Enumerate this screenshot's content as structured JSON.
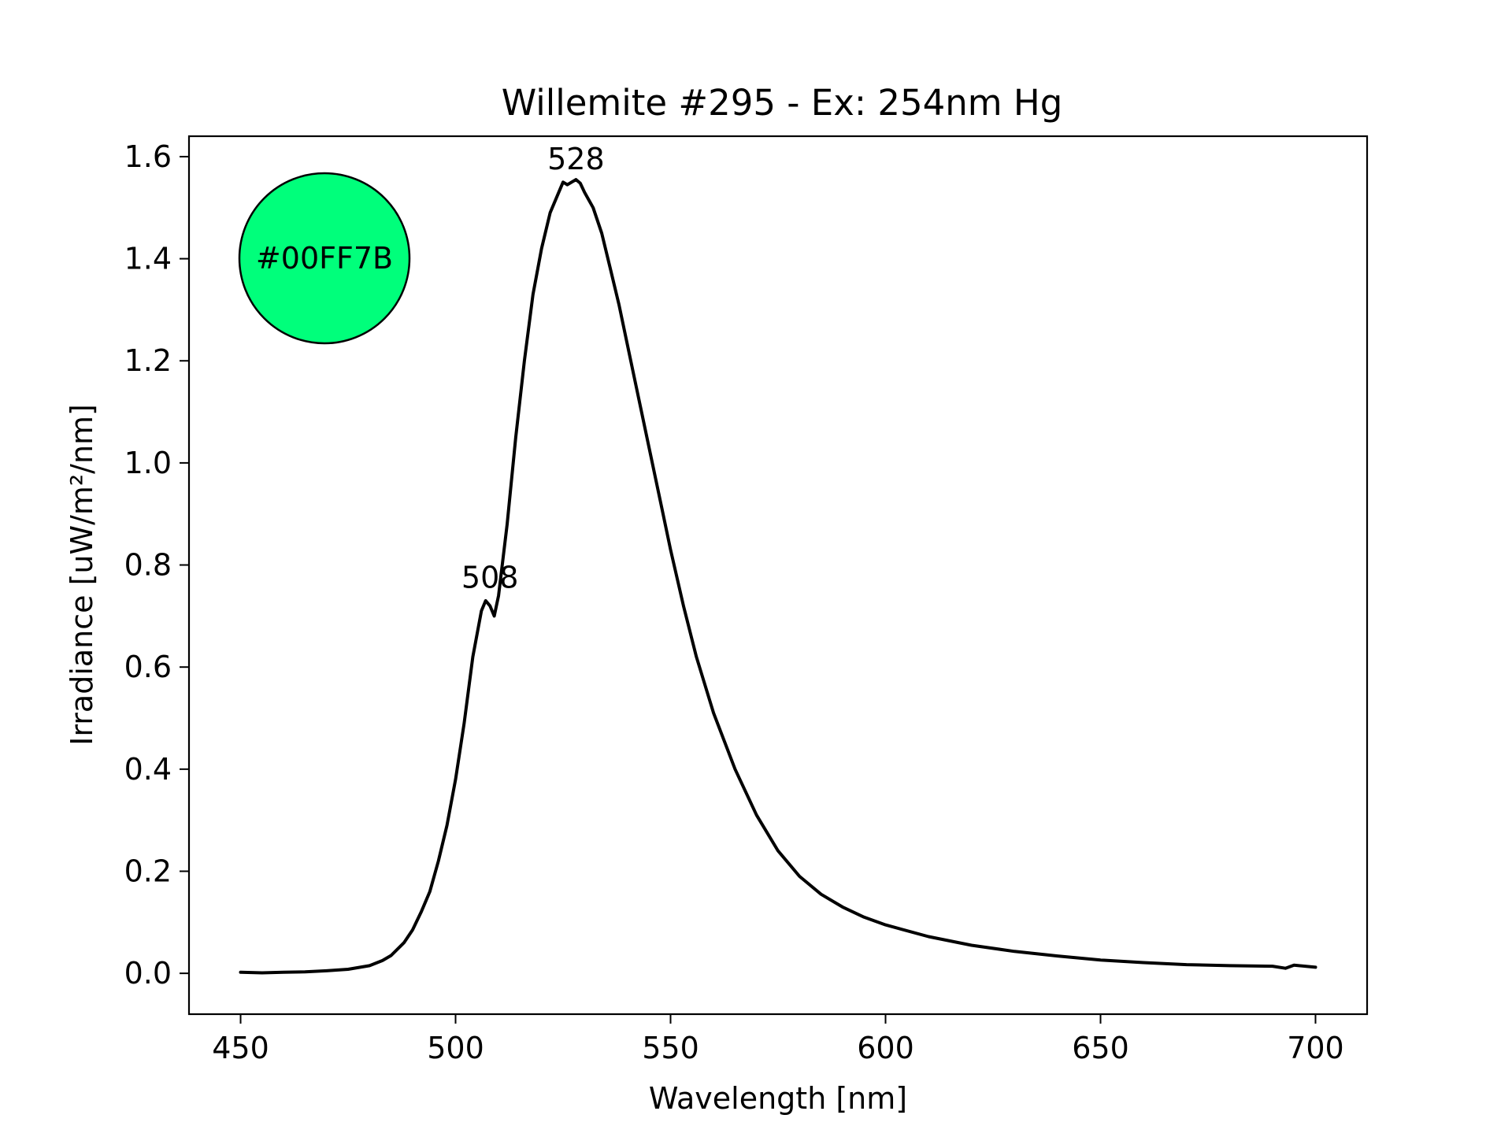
{
  "chart_data": {
    "type": "line",
    "title": "Willemite #295 - Ex: 254nm Hg",
    "xlabel": "Wavelength [nm]",
    "ylabel": "Irradiance [uW/m²/nm]",
    "xlim": [
      438,
      712
    ],
    "ylim": [
      -0.08,
      1.64
    ],
    "xticks": [
      {
        "value": 450,
        "label": "450"
      },
      {
        "value": 500,
        "label": "500"
      },
      {
        "value": 550,
        "label": "550"
      },
      {
        "value": 600,
        "label": "600"
      },
      {
        "value": 650,
        "label": "650"
      },
      {
        "value": 700,
        "label": "700"
      }
    ],
    "yticks": [
      {
        "value": 0.0,
        "label": "0.0"
      },
      {
        "value": 0.2,
        "label": "0.2"
      },
      {
        "value": 0.4,
        "label": "0.4"
      },
      {
        "value": 0.6,
        "label": "0.6"
      },
      {
        "value": 0.8,
        "label": "0.8"
      },
      {
        "value": 1.0,
        "label": "1.0"
      },
      {
        "value": 1.2,
        "label": "1.2"
      },
      {
        "value": 1.4,
        "label": "1.4"
      },
      {
        "value": 1.6,
        "label": "1.6"
      }
    ],
    "grid": false,
    "series": [
      {
        "color": "#000000",
        "x": [
          450,
          455,
          460,
          465,
          470,
          475,
          480,
          483,
          485,
          488,
          490,
          492,
          494,
          496,
          498,
          500,
          502,
          504,
          506,
          507,
          508,
          509,
          510,
          512,
          514,
          516,
          518,
          520,
          522,
          524,
          525,
          526,
          527,
          528,
          529,
          530,
          532,
          534,
          536,
          538,
          540,
          542,
          545,
          548,
          550,
          553,
          556,
          560,
          565,
          570,
          575,
          580,
          585,
          590,
          595,
          600,
          610,
          620,
          630,
          640,
          650,
          660,
          670,
          680,
          690,
          693,
          695,
          700
        ],
        "y": [
          0.002,
          0.001,
          0.002,
          0.003,
          0.005,
          0.008,
          0.015,
          0.025,
          0.035,
          0.06,
          0.085,
          0.12,
          0.16,
          0.22,
          0.29,
          0.38,
          0.49,
          0.62,
          0.71,
          0.73,
          0.72,
          0.7,
          0.74,
          0.88,
          1.05,
          1.2,
          1.33,
          1.42,
          1.49,
          1.53,
          1.55,
          1.545,
          1.55,
          1.555,
          1.548,
          1.53,
          1.5,
          1.45,
          1.38,
          1.31,
          1.23,
          1.15,
          1.03,
          0.91,
          0.83,
          0.72,
          0.62,
          0.51,
          0.4,
          0.31,
          0.24,
          0.19,
          0.155,
          0.13,
          0.11,
          0.095,
          0.072,
          0.055,
          0.043,
          0.034,
          0.026,
          0.021,
          0.017,
          0.015,
          0.014,
          0.01,
          0.016,
          0.012
        ]
      }
    ],
    "annotations": [
      {
        "text": "508",
        "x": 508,
        "y": 0.755
      },
      {
        "text": "528",
        "x": 528,
        "y": 1.575
      }
    ],
    "color_swatch": {
      "label": "#00FF7B",
      "fill": "#00FF7B",
      "stroke": "#000000"
    }
  }
}
